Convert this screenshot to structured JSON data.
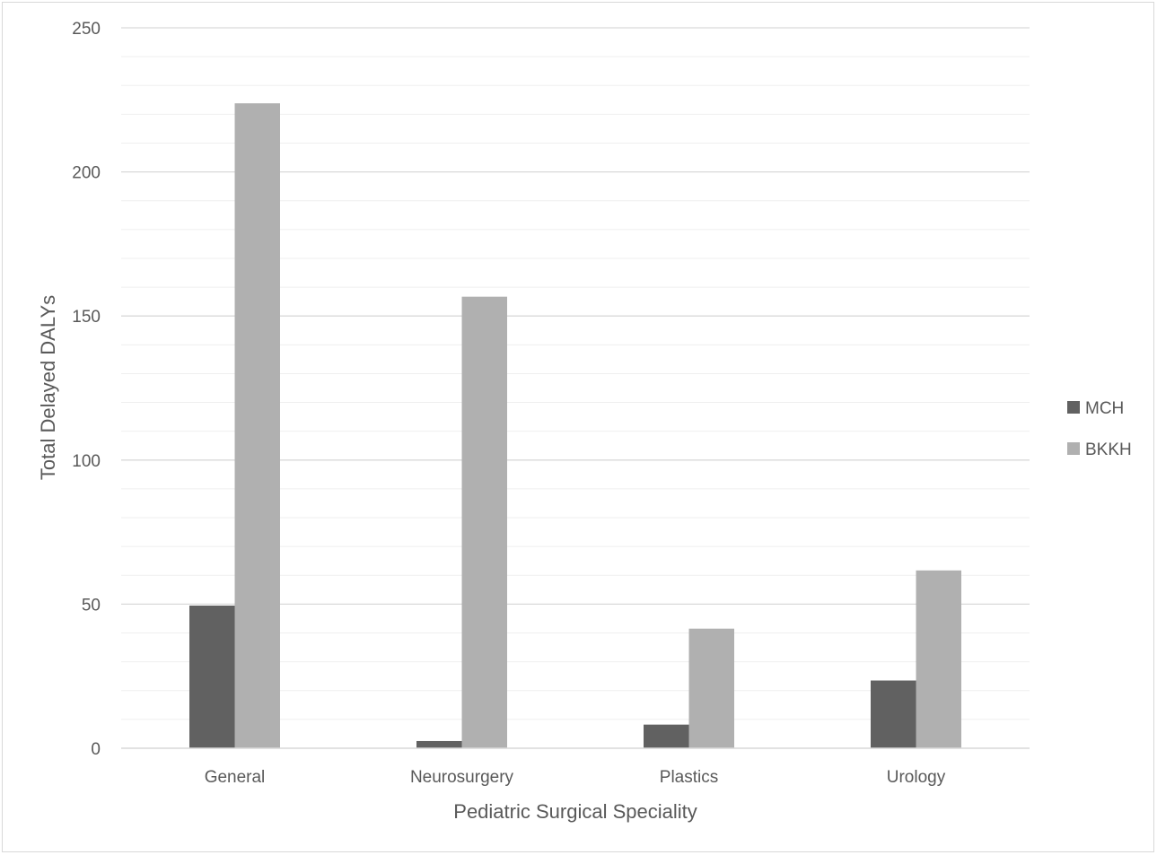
{
  "chart_data": {
    "type": "bar",
    "title": "",
    "xlabel": "Pediatric Surgical Speciality",
    "ylabel": "Total Delayed DALYs",
    "categories": [
      "General",
      "Neurosurgery",
      "Plastics",
      "Urology"
    ],
    "series": [
      {
        "name": "MCH",
        "values": [
          49.5,
          2.5,
          8.2,
          23.5
        ],
        "color": "#616161"
      },
      {
        "name": "BKKH",
        "values": [
          223.8,
          156.7,
          41.5,
          61.7
        ],
        "color": "#b0b0b0"
      }
    ],
    "ylim": [
      0,
      250
    ],
    "yticks": [
      "0",
      "50",
      "100",
      "150",
      "200",
      "250"
    ],
    "grid": "on",
    "legend_position": "right"
  }
}
